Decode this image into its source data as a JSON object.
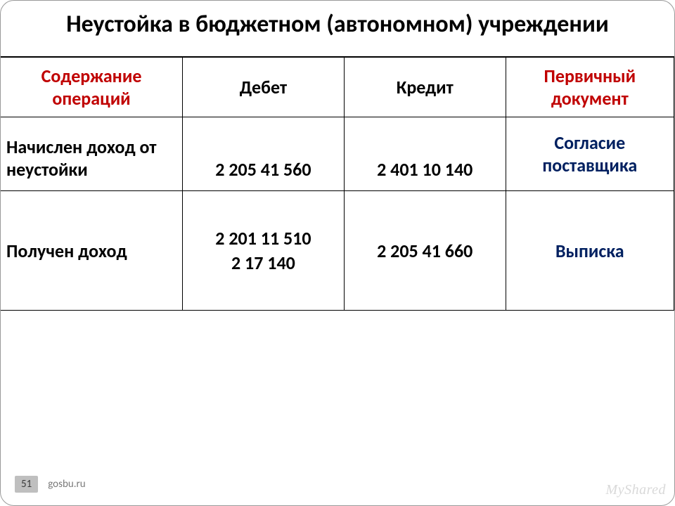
{
  "title": "Неустойка в бюджетном (автономном) учреждении",
  "table": {
    "headers": {
      "col1": "Содержание операций",
      "col2": "Дебет",
      "col3": "Кредит",
      "col4": "Первичный документ"
    },
    "rows": [
      {
        "op": "Начислен доход от неустойки",
        "debit": "2 205 41 560",
        "credit": "2 401 10 140",
        "doc": "Согласие поставщика"
      },
      {
        "op": "Получен доход",
        "debit": "2 201 11 510\n2 17 140",
        "credit": "2 205 41 660",
        "doc": "Выписка"
      }
    ]
  },
  "footer": {
    "page": "51",
    "source": "gosbu.ru"
  },
  "watermark": "MyShared",
  "colors": {
    "header_red": "#c00000",
    "doc_blue": "#002060",
    "page_bg": "#bfbfbf",
    "src_gray": "#7a7a7a",
    "wm_gray": "#d9d9d9"
  }
}
